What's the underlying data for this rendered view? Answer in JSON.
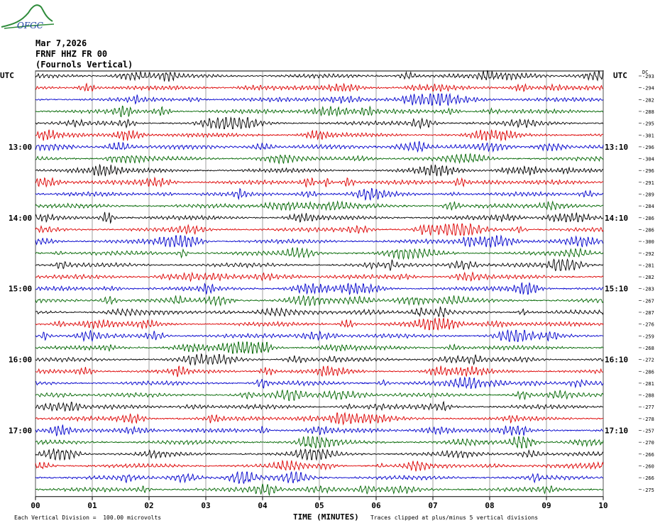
{
  "logo": {
    "text": "OFGC"
  },
  "header": {
    "date": "Mar 7,2026",
    "station": "FRNF HHZ FR 00",
    "location": "(Fournols Vertical)"
  },
  "axis_labels": {
    "utc_left": "UTC",
    "utc_right": "UTC",
    "dc_label": "DC",
    "xlabel": "TIME (MINUTES)"
  },
  "footer": {
    "scale_note": "Each Vertical Division =  100.00 microvolts",
    "clip_note": "Traces clipped at plus/minus 5 vertical divisions"
  },
  "chart_data": {
    "type": "line",
    "x_range": [
      0,
      10
    ],
    "x_ticks": [
      "00",
      "01",
      "02",
      "03",
      "04",
      "05",
      "06",
      "07",
      "08",
      "09",
      "10"
    ],
    "trace_count": 36,
    "trace_colors": [
      "#000000",
      "#dd0000",
      "#0000cc",
      "#006600"
    ],
    "left_time_labels": [
      {
        "trace": 6,
        "label": "13:00"
      },
      {
        "trace": 12,
        "label": "14:00"
      },
      {
        "trace": 18,
        "label": "15:00"
      },
      {
        "trace": 24,
        "label": "16:00"
      },
      {
        "trace": 30,
        "label": "17:00"
      }
    ],
    "right_time_labels": [
      {
        "trace": 6,
        "label": "13:10"
      },
      {
        "trace": 12,
        "label": "14:10"
      },
      {
        "trace": 18,
        "label": "15:10"
      },
      {
        "trace": 24,
        "label": "16:10"
      },
      {
        "trace": 30,
        "label": "17:10"
      }
    ],
    "dc_offsets": [
      "-293",
      "-294",
      "-282",
      "-288",
      "-295",
      "-301",
      "-296",
      "-304",
      "-296",
      "-291",
      "-289",
      "-284",
      "-286",
      "-286",
      "-300",
      "-292",
      "-281",
      "-282",
      "-283",
      "-267",
      "-287",
      "-276",
      "-259",
      "-268",
      "-272",
      "-286",
      "-281",
      "-288",
      "-277",
      "-278",
      "-257",
      "-270",
      "-266",
      "-260",
      "-266",
      "-275"
    ],
    "grid": true
  }
}
